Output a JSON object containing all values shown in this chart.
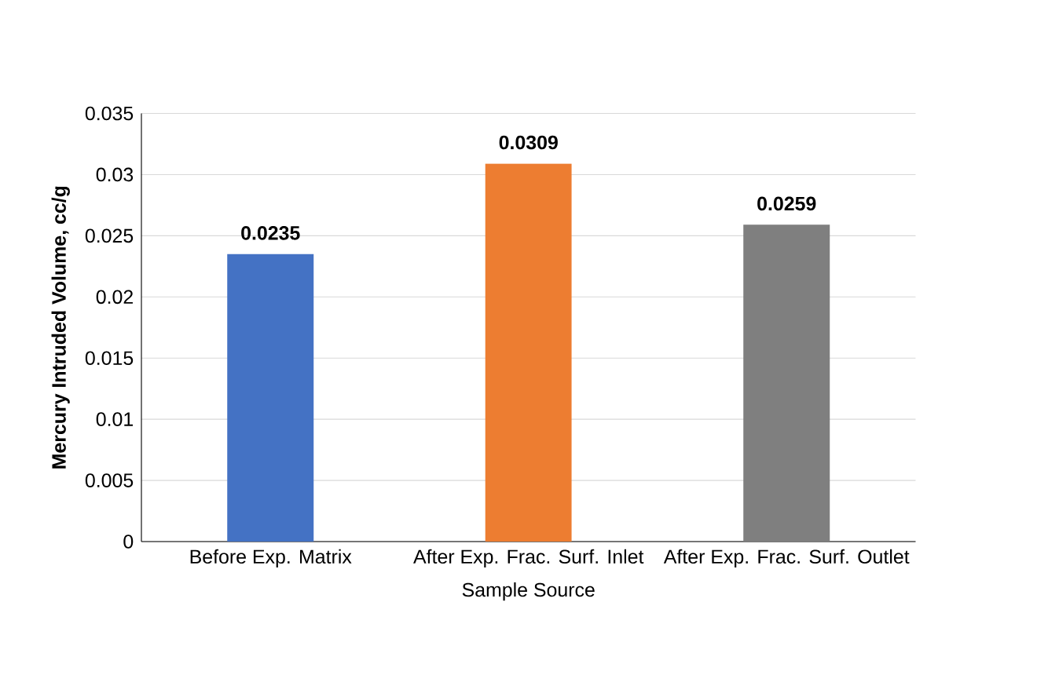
{
  "chart_data": {
    "type": "bar",
    "xlabel": "Sample Source",
    "ylabel": "Mercury Intruded Volume, cc/g",
    "categories": [
      "Before Exp. Matrix",
      "After Exp. Frac. Surf. Inlet",
      "After Exp. Frac. Surf. Outlet"
    ],
    "values": [
      0.0235,
      0.0309,
      0.0259
    ],
    "colors": [
      "#4472c4",
      "#ed7d31",
      "#7f7f7f"
    ],
    "ylim": [
      0,
      0.035
    ],
    "yticks": [
      0,
      0.005,
      0.01,
      0.015,
      0.02,
      0.025,
      0.03,
      0.035
    ],
    "grid": "y",
    "data_labels": true
  }
}
